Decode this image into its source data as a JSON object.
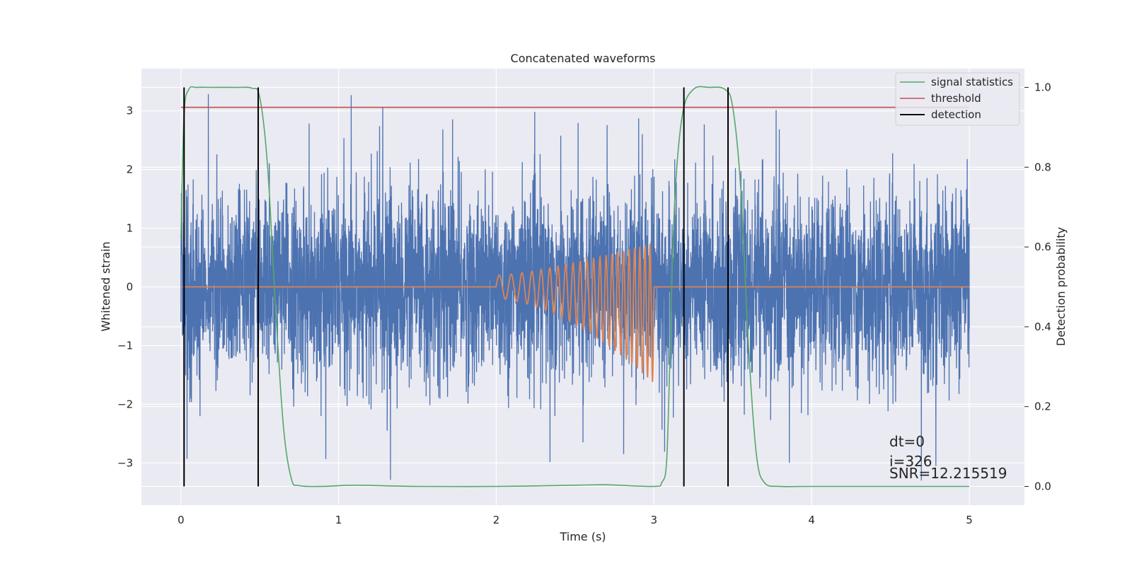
{
  "chart_data": {
    "type": "line",
    "title": "Concatenated waveforms",
    "xlabel": "Time (s)",
    "ylabel": "Whitened strain",
    "y2label": "Detection probability",
    "xlim": [
      -0.25,
      5.35
    ],
    "ylim": [
      -3.72,
      3.72
    ],
    "y2lim": [
      -0.047,
      1.047
    ],
    "xticks": [
      0,
      1,
      2,
      3,
      4,
      5
    ],
    "yticks": [
      -3,
      -2,
      -1,
      0,
      1,
      2,
      3
    ],
    "y2ticks": [
      0.0,
      0.2,
      0.4,
      0.6,
      0.8,
      1.0
    ],
    "grid": true,
    "legend_position": "top-right",
    "series": [
      {
        "name": "",
        "axis": "left",
        "color": "#4c72b0",
        "kind": "noise",
        "x_range": [
          0,
          5
        ],
        "typical_amplitude": 1.5,
        "peak_amplitude": 3.3
      },
      {
        "name": "",
        "axis": "left",
        "color": "#dd8452",
        "kind": "chirp",
        "x_range": [
          0,
          5
        ],
        "chirp_start": 2.0,
        "chirp_end": 3.0,
        "amplitude_start": 0.2,
        "amplitude_end": 1.2,
        "cycles_start_per_s": 12,
        "cycles_end_per_s": 32
      },
      {
        "name": "signal statistics",
        "axis": "right",
        "color": "#55a868",
        "x": [
          0.0,
          0.02,
          0.05,
          0.1,
          0.2,
          0.35,
          0.45,
          0.5,
          0.55,
          0.6,
          0.65,
          0.7,
          0.75,
          0.9,
          1.1,
          1.5,
          2.0,
          2.5,
          2.7,
          3.0,
          3.05,
          3.08,
          3.1,
          3.13,
          3.18,
          3.25,
          3.35,
          3.45,
          3.5,
          3.55,
          3.6,
          3.65,
          3.7,
          3.8,
          4.0,
          5.0
        ],
        "y": [
          0.62,
          0.93,
          0.995,
          1.0,
          1.0,
          1.0,
          0.998,
          0.975,
          0.8,
          0.45,
          0.15,
          0.02,
          0.002,
          0.0,
          0.003,
          0.0,
          0.0,
          0.003,
          0.004,
          0.0,
          0.01,
          0.06,
          0.3,
          0.7,
          0.93,
          0.995,
          1.0,
          0.995,
          0.95,
          0.75,
          0.35,
          0.08,
          0.01,
          0.0,
          0.0,
          0.0
        ]
      },
      {
        "name": "threshold",
        "axis": "right",
        "color": "#c44e52",
        "x": [
          0,
          5
        ],
        "y": [
          0.95,
          0.95
        ]
      },
      {
        "name": "detection",
        "axis": "right",
        "color": "#000000",
        "kind": "vlines",
        "x": [
          0.02,
          0.49,
          3.19,
          3.47
        ],
        "ymin": 0.0,
        "ymax": 1.0
      }
    ],
    "annotation": {
      "lines": [
        "dt=0",
        "i=326",
        "SNR=12.215519"
      ]
    },
    "colors": {
      "background": "#eaeaf2",
      "grid": "#ffffff"
    }
  }
}
